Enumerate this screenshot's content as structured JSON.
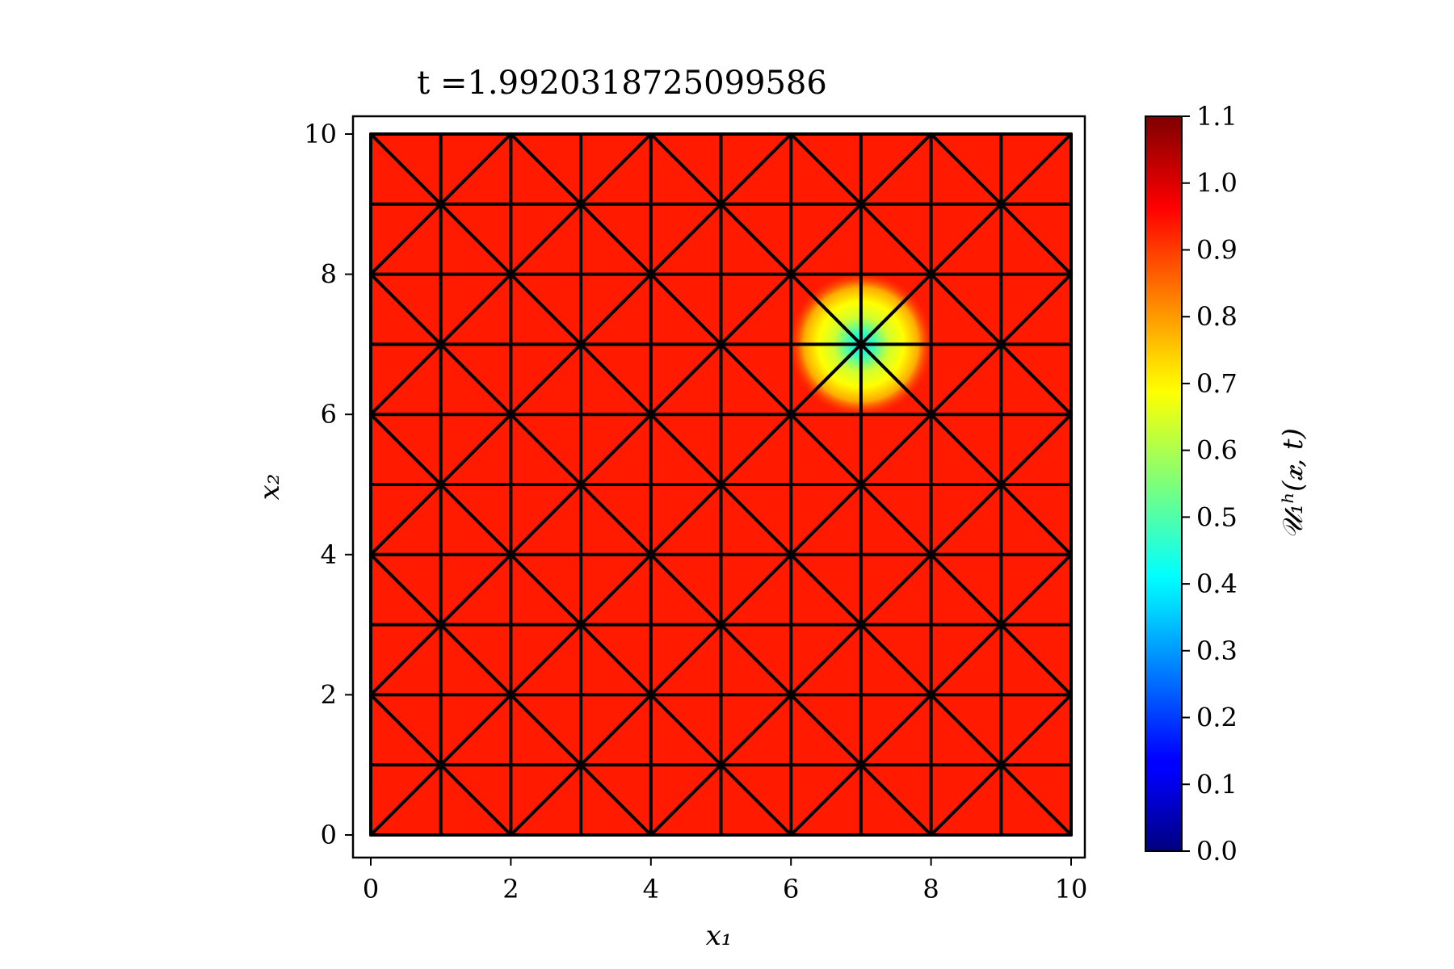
{
  "chart_data": {
    "type": "heatmap",
    "title": "t =1.9920318725099586",
    "xlabel": "x₁",
    "ylabel": "x₂",
    "xlim": [
      0,
      10
    ],
    "ylim": [
      0,
      10
    ],
    "xticks": [
      0,
      2,
      4,
      6,
      8,
      10
    ],
    "yticks": [
      0,
      2,
      4,
      6,
      8,
      10
    ],
    "grid": false,
    "colormap": "jet",
    "colorbar": {
      "label": "𝒰₁ʰ(𝒙, t)",
      "range": [
        0.0,
        1.1
      ],
      "ticks": [
        "0.0",
        "0.1",
        "0.2",
        "0.3",
        "0.4",
        "0.5",
        "0.6",
        "0.7",
        "0.8",
        "0.9",
        "1.0",
        "1.1"
      ]
    },
    "field": {
      "background_value": 0.98,
      "dip": {
        "center": [
          7,
          7
        ],
        "min_value": 0.3,
        "radius": 1.0
      }
    },
    "mesh": {
      "nodes_per_side": 11,
      "spacing": 1,
      "diagonal_pattern": "union-jack"
    }
  }
}
